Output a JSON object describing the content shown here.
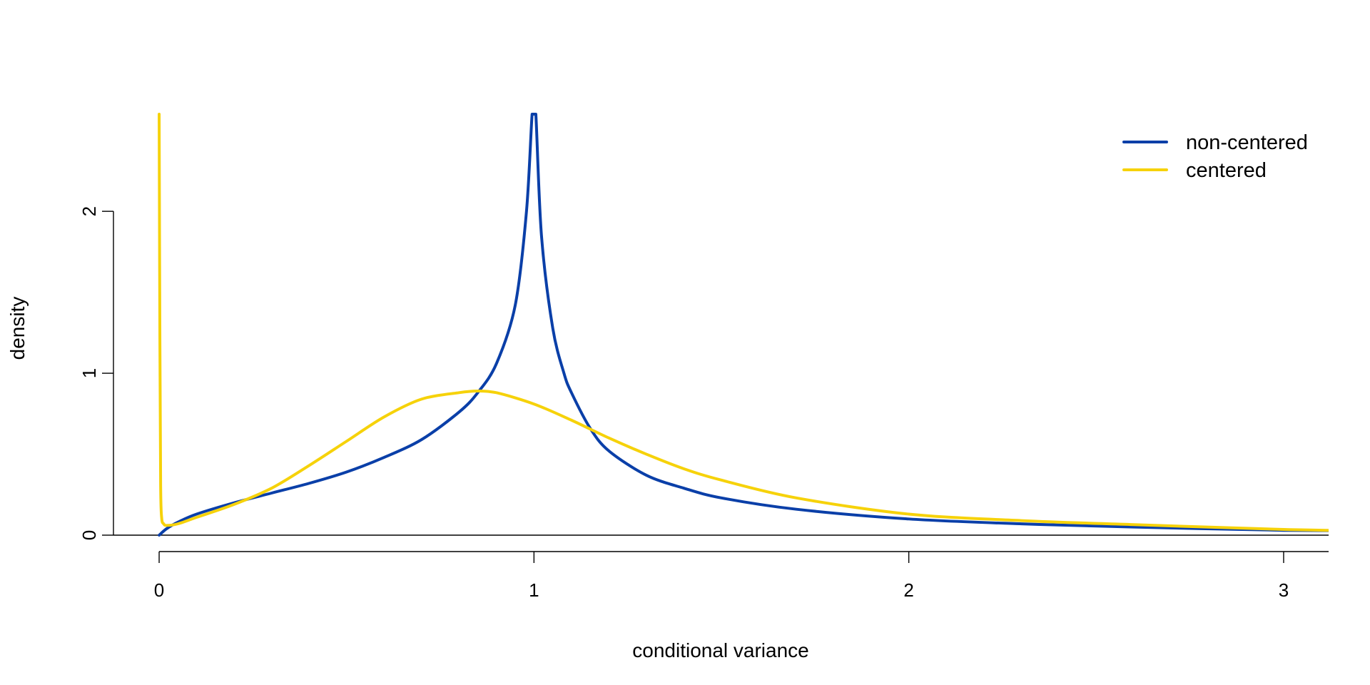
{
  "chart_data": {
    "type": "line",
    "title": "",
    "xlabel": "conditional variance",
    "ylabel": "density",
    "xlim": [
      -0.12,
      3.12
    ],
    "ylim": [
      0,
      2.6
    ],
    "x_ticks": [
      0,
      1,
      2,
      3
    ],
    "x_tick_labels": [
      "0",
      "1",
      "2",
      "3"
    ],
    "y_ticks": [
      0,
      1,
      2
    ],
    "y_tick_labels": [
      "0",
      "1",
      "2"
    ],
    "grid": false,
    "legend_position": "top-right",
    "legend": [
      {
        "label": "non-centered",
        "color": "#0a3fa8"
      },
      {
        "label": "centered",
        "color": "#f6d20a"
      }
    ],
    "series": [
      {
        "name": "non-centered",
        "color": "#0a3fa8",
        "x": [
          0.0,
          0.02,
          0.05,
          0.1,
          0.2,
          0.3,
          0.4,
          0.5,
          0.6,
          0.7,
          0.8,
          0.85,
          0.9,
          0.95,
          0.98,
          0.995,
          1.0,
          1.005,
          1.02,
          1.05,
          1.08,
          1.1,
          1.15,
          1.2,
          1.3,
          1.4,
          1.5,
          1.7,
          2.0,
          2.3,
          2.6,
          3.0,
          3.12
        ],
        "y": [
          0.0,
          0.04,
          0.08,
          0.13,
          0.2,
          0.26,
          0.32,
          0.39,
          0.48,
          0.59,
          0.76,
          0.88,
          1.06,
          1.42,
          2.0,
          2.6,
          2.6,
          2.6,
          1.85,
          1.28,
          1.0,
          0.88,
          0.66,
          0.52,
          0.37,
          0.29,
          0.23,
          0.16,
          0.1,
          0.07,
          0.05,
          0.03,
          0.028
        ]
      },
      {
        "name": "centered",
        "color": "#f6d20a",
        "x": [
          0.0,
          0.002,
          0.004,
          0.007,
          0.012,
          0.02,
          0.05,
          0.1,
          0.2,
          0.3,
          0.4,
          0.5,
          0.6,
          0.7,
          0.8,
          0.85,
          0.9,
          1.0,
          1.1,
          1.2,
          1.3,
          1.4,
          1.5,
          1.7,
          2.0,
          2.3,
          2.6,
          3.0,
          3.12
        ],
        "y": [
          2.6,
          1.2,
          0.3,
          0.1,
          0.07,
          0.06,
          0.07,
          0.11,
          0.19,
          0.29,
          0.43,
          0.58,
          0.73,
          0.84,
          0.88,
          0.89,
          0.88,
          0.81,
          0.71,
          0.6,
          0.5,
          0.41,
          0.34,
          0.23,
          0.13,
          0.09,
          0.065,
          0.035,
          0.03
        ]
      }
    ]
  }
}
